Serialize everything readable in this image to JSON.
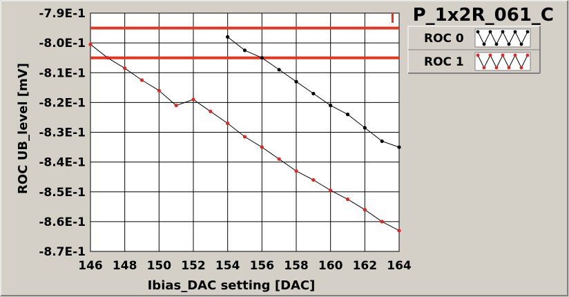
{
  "chart_data": {
    "type": "line",
    "title": "P_1x2R_061_C",
    "xlabel": "Ibias_DAC setting [DAC]",
    "ylabel": "ROC UB_level [mV]",
    "xlim": [
      146,
      164
    ],
    "ylim": [
      -0.87,
      -0.79
    ],
    "x_ticks": [
      "146",
      "148",
      "150",
      "152",
      "154",
      "156",
      "158",
      "160",
      "162",
      "164"
    ],
    "y_ticks": [
      "-7.9E-1",
      "-8.0E-1",
      "-8.1E-1",
      "-8.2E-1",
      "-8.3E-1",
      "-8.4E-1",
      "-8.5E-1",
      "-8.6E-1",
      "-8.7E-1"
    ],
    "grid": true,
    "legend_placement": "right",
    "series": [
      {
        "name": "ROC 0",
        "color": "#000000",
        "x": [
          154,
          155,
          156,
          157,
          158,
          159,
          160,
          161,
          162,
          163,
          164
        ],
        "y": [
          -0.798,
          -0.8025,
          -0.805,
          -0.809,
          -0.813,
          -0.817,
          -0.821,
          -0.824,
          -0.8285,
          -0.833,
          -0.835
        ]
      },
      {
        "name": "ROC 1",
        "color": "#e8231e",
        "x": [
          146,
          147,
          148,
          149,
          150,
          151,
          152,
          153,
          154,
          155,
          156,
          157,
          158,
          159,
          160,
          161,
          162,
          163,
          164
        ],
        "y": [
          -0.8005,
          -0.805,
          -0.8085,
          -0.8125,
          -0.816,
          -0.821,
          -0.819,
          -0.823,
          -0.827,
          -0.8315,
          -0.835,
          -0.839,
          -0.843,
          -0.846,
          -0.8495,
          -0.8525,
          -0.856,
          -0.86,
          -0.863
        ]
      }
    ],
    "limit_lines": {
      "color": "#e8331e",
      "y": [
        -0.795,
        -0.805
      ]
    }
  }
}
